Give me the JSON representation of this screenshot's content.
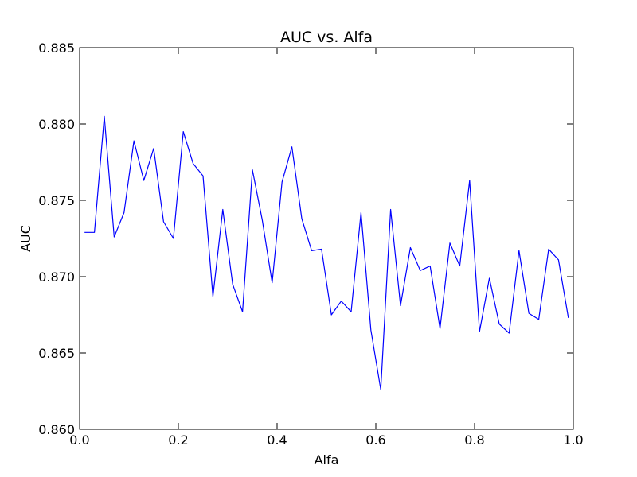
{
  "chart_data": {
    "type": "line",
    "title": "AUC vs. Alfa",
    "xlabel": "Alfa",
    "ylabel": "AUC",
    "xlim": [
      0.0,
      1.0
    ],
    "ylim": [
      0.86,
      0.885
    ],
    "xticks": [
      0.0,
      0.2,
      0.4,
      0.6,
      0.8,
      1.0
    ],
    "xtick_labels": [
      "0.0",
      "0.2",
      "0.4",
      "0.6",
      "0.8",
      "1.0"
    ],
    "yticks": [
      0.86,
      0.865,
      0.87,
      0.875,
      0.88,
      0.885
    ],
    "ytick_labels": [
      "0.860",
      "0.865",
      "0.870",
      "0.875",
      "0.880",
      "0.885"
    ],
    "grid": false,
    "series": [
      {
        "color": "#0000ff",
        "x": [
          0.01,
          0.03,
          0.05,
          0.07,
          0.09,
          0.11,
          0.13,
          0.15,
          0.17,
          0.19,
          0.21,
          0.23,
          0.25,
          0.27,
          0.29,
          0.31,
          0.33,
          0.35,
          0.37,
          0.39,
          0.41,
          0.43,
          0.45,
          0.47,
          0.49,
          0.51,
          0.53,
          0.55,
          0.57,
          0.59,
          0.61,
          0.63,
          0.65,
          0.67,
          0.69,
          0.71,
          0.73,
          0.75,
          0.77,
          0.79,
          0.81,
          0.83,
          0.85,
          0.87,
          0.89,
          0.91,
          0.93,
          0.95,
          0.97,
          0.99
        ],
        "y": [
          0.8729,
          0.8729,
          0.8805,
          0.8726,
          0.8742,
          0.8789,
          0.8763,
          0.8784,
          0.8736,
          0.8725,
          0.8795,
          0.8774,
          0.8766,
          0.8687,
          0.8744,
          0.8695,
          0.8677,
          0.877,
          0.8737,
          0.8696,
          0.8762,
          0.8785,
          0.8738,
          0.8717,
          0.8718,
          0.8675,
          0.8684,
          0.8677,
          0.8742,
          0.8665,
          0.8626,
          0.8744,
          0.8681,
          0.8719,
          0.8704,
          0.8707,
          0.8666,
          0.8722,
          0.8707,
          0.8763,
          0.8664,
          0.8699,
          0.8669,
          0.8663,
          0.8717,
          0.8676,
          0.8672,
          0.8718,
          0.8711,
          0.8673
        ]
      }
    ]
  }
}
